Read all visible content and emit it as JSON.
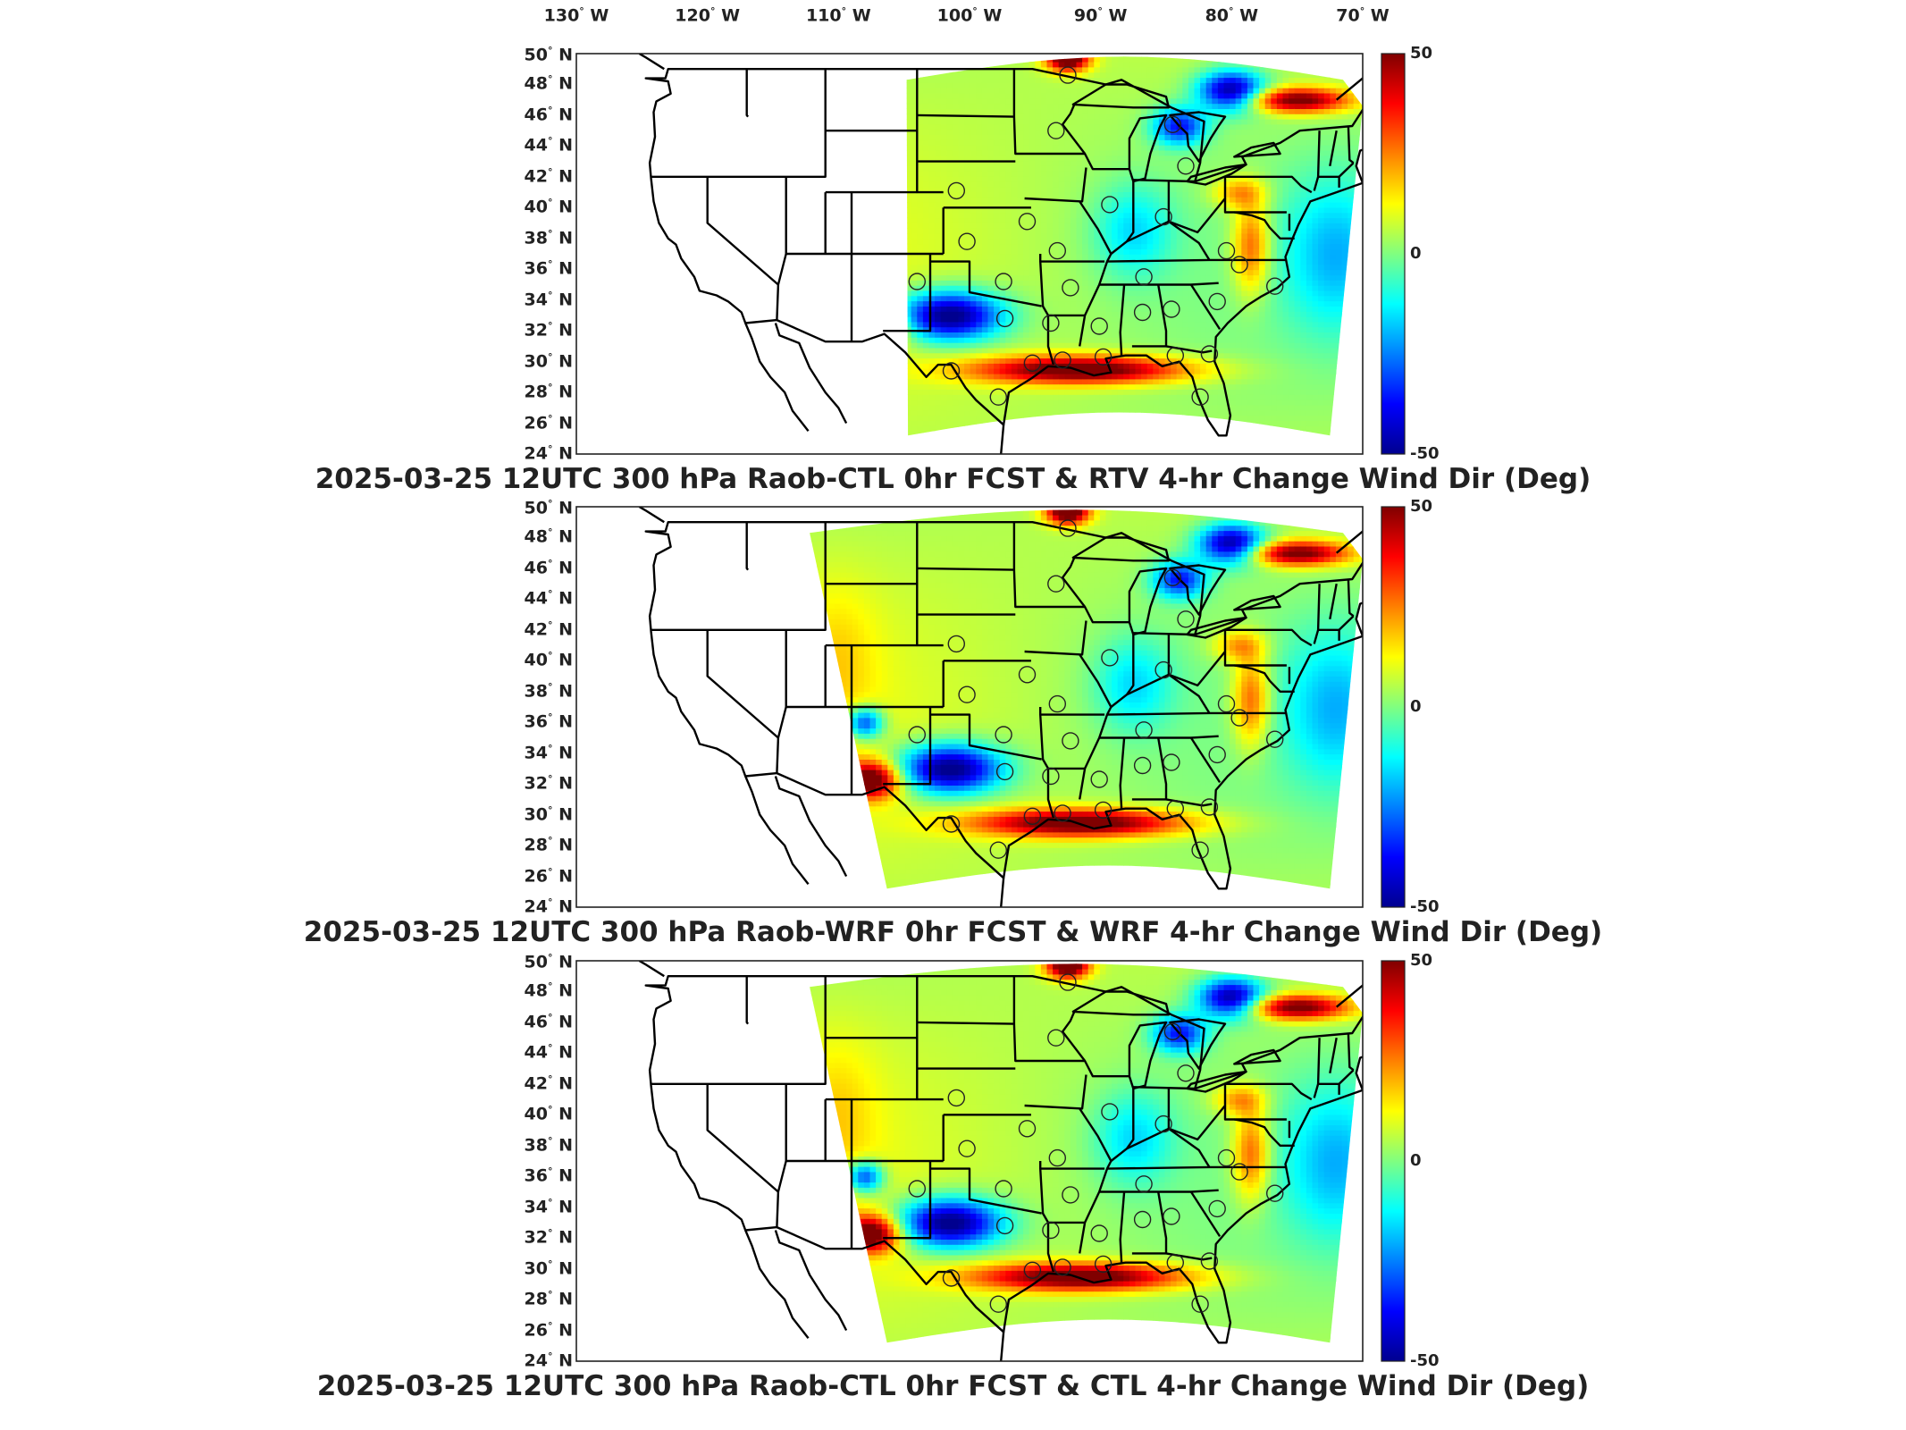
{
  "longitude_labels": [
    "130° W",
    "120° W",
    "110° W",
    "100° W",
    "90° W",
    "80° W",
    "70° W"
  ],
  "latitude_labels": [
    "50° N",
    "48° N",
    "46° N",
    "44° N",
    "42° N",
    "40° N",
    "38° N",
    "36° N",
    "34° N",
    "32° N",
    "30° N",
    "28° N",
    "26° N",
    "24° N"
  ],
  "panels": [
    {
      "title": "2025-03-25 12UTC 300 hPa Raob-CTL 0hr FCST & RTV 4-hr Change Wind Dir (Deg)",
      "colorbar": {
        "max": "50",
        "mid": "0",
        "min": "-50"
      },
      "domain": "narrow"
    },
    {
      "title": "2025-03-25 12UTC 300 hPa Raob-WRF 0hr FCST & WRF 4-hr Change Wind Dir (Deg)",
      "colorbar": {
        "max": "50",
        "mid": "0",
        "min": "-50"
      },
      "domain": "wide"
    },
    {
      "title": "2025-03-25 12UTC 300 hPa Raob-CTL 0hr FCST & CTL 4-hr Change Wind Dir (Deg)",
      "colorbar": {
        "max": "50",
        "mid": "0",
        "min": "-50"
      },
      "domain": "wide"
    }
  ],
  "map_extent": {
    "lon_min": -130,
    "lon_max": -70,
    "lat_min": 24,
    "lat_max": 50
  },
  "colormap": [
    "#00008f",
    "#0000ff",
    "#0080ff",
    "#00ffff",
    "#80ff80",
    "#ffff00",
    "#ff8000",
    "#ff0000",
    "#800000"
  ],
  "raob_stations": [
    [
      -92.5,
      48.6
    ],
    [
      -93.4,
      45.0
    ],
    [
      -84.5,
      45.4
    ],
    [
      -83.5,
      42.7
    ],
    [
      -101.0,
      41.1
    ],
    [
      -89.3,
      40.2
    ],
    [
      -85.2,
      39.4
    ],
    [
      -100.2,
      37.8
    ],
    [
      -95.6,
      39.1
    ],
    [
      -93.3,
      37.2
    ],
    [
      -80.4,
      37.2
    ],
    [
      -79.4,
      36.3
    ],
    [
      -104.0,
      35.2
    ],
    [
      -97.4,
      35.2
    ],
    [
      -92.3,
      34.8
    ],
    [
      -86.7,
      35.5
    ],
    [
      -76.7,
      34.9
    ],
    [
      -81.1,
      33.9
    ],
    [
      -84.6,
      33.4
    ],
    [
      -86.8,
      33.2
    ],
    [
      -97.3,
      32.8
    ],
    [
      -93.8,
      32.5
    ],
    [
      -90.1,
      32.3
    ],
    [
      -81.7,
      30.5
    ],
    [
      -84.3,
      30.4
    ],
    [
      -89.8,
      30.3
    ],
    [
      -92.9,
      30.1
    ],
    [
      -101.4,
      29.4
    ],
    [
      -97.8,
      27.7
    ],
    [
      -82.4,
      27.7
    ],
    [
      -95.2,
      29.9
    ]
  ]
}
